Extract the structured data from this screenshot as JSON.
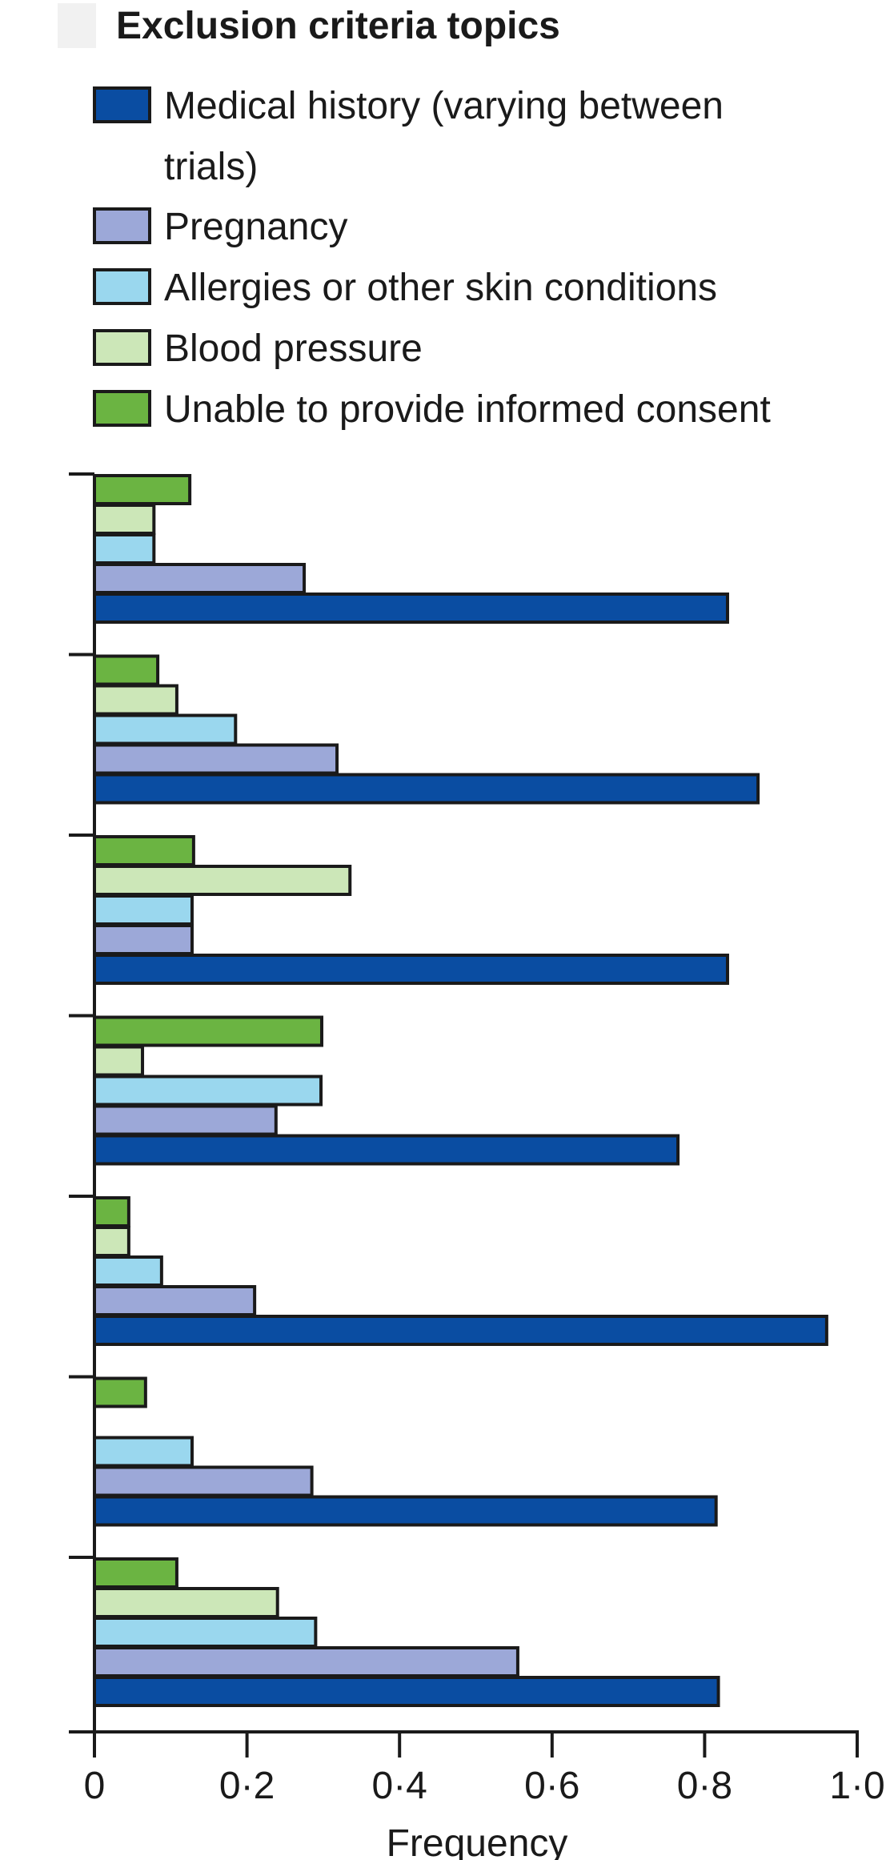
{
  "chart_data": {
    "type": "bar",
    "orientation": "horizontal",
    "legend": {
      "title": "Exclusion criteria topics",
      "placement": "top",
      "items": [
        {
          "lines": [
            "Medical history (varying between",
            "trials)"
          ]
        },
        {
          "lines": [
            "Pregnancy"
          ]
        },
        {
          "lines": [
            "Allergies or other skin conditions"
          ]
        },
        {
          "lines": [
            "Blood pressure"
          ]
        },
        {
          "lines": [
            "Unable to provide informed consent"
          ]
        }
      ]
    },
    "categories": [
      "",
      "",
      "",
      "",
      "",
      "",
      ""
    ],
    "series": [
      {
        "name": "Medical history (varying between trials)",
        "color": "#0a4da2",
        "values": [
          0.83,
          0.87,
          0.83,
          0.765,
          0.96,
          0.815,
          0.818
        ]
      },
      {
        "name": "Pregnancy",
        "color": "#9ca8d8",
        "values": [
          0.275,
          0.318,
          0.128,
          0.238,
          0.21,
          0.285,
          0.555
        ]
      },
      {
        "name": "Allergies or other skin conditions",
        "color": "#9ad7ee",
        "values": [
          0.078,
          0.185,
          0.128,
          0.297,
          0.088,
          0.128,
          0.29
        ]
      },
      {
        "name": "Blood pressure",
        "color": "#cce7b8",
        "values": [
          0.078,
          0.108,
          0.335,
          0.063,
          0.045,
          0,
          0.24
        ]
      },
      {
        "name": "Unable to provide informed consent",
        "color": "#6bb442",
        "values": [
          0.125,
          0.083,
          0.13,
          0.298,
          0.045,
          0.067,
          0.108
        ]
      }
    ],
    "xlabel": "Frequency",
    "xlim": [
      0,
      1.0
    ],
    "xticks": [
      0,
      0.2,
      0.4,
      0.6,
      0.8,
      1.0
    ],
    "xtick_labels": [
      "0",
      "0·2",
      "0·4",
      "0·6",
      "0·8",
      "1·0"
    ],
    "grid": false
  }
}
